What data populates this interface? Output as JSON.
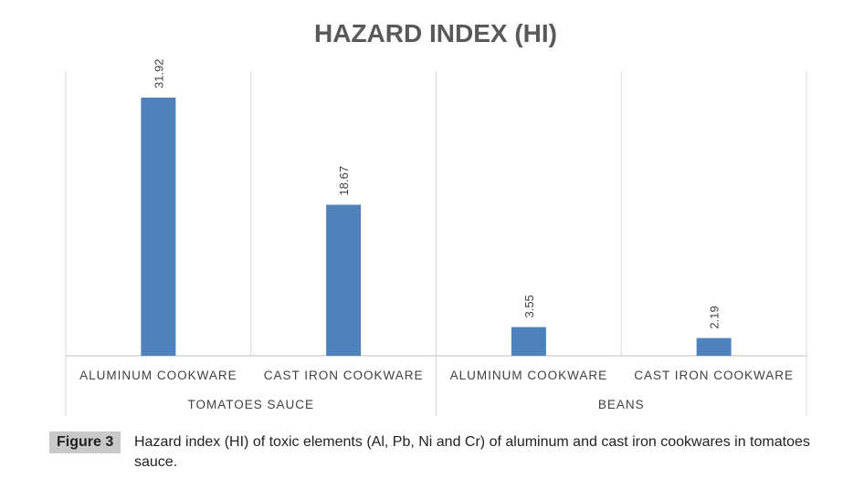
{
  "chart_data": {
    "type": "bar",
    "title": "HAZARD INDEX (HI)",
    "groups": [
      "TOMATOES SAUCE",
      "BEANS"
    ],
    "categories": [
      "ALUMINUM COOKWARE",
      "CAST IRON COOKWARE",
      "ALUMINUM COOKWARE",
      "CAST IRON COOKWARE"
    ],
    "values": [
      31.92,
      18.67,
      3.55,
      2.19
    ],
    "value_labels": [
      "31.92",
      "18.67",
      "3.55",
      "2.19"
    ],
    "ylim": [
      0,
      35
    ],
    "bar_color": "#4f81bd",
    "grid": false
  },
  "caption": {
    "label": "Figure 3",
    "text": "Hazard index (HI) of toxic elements (Al, Pb, Ni and Cr) of aluminum and cast iron cookwares in tomatoes sauce."
  }
}
